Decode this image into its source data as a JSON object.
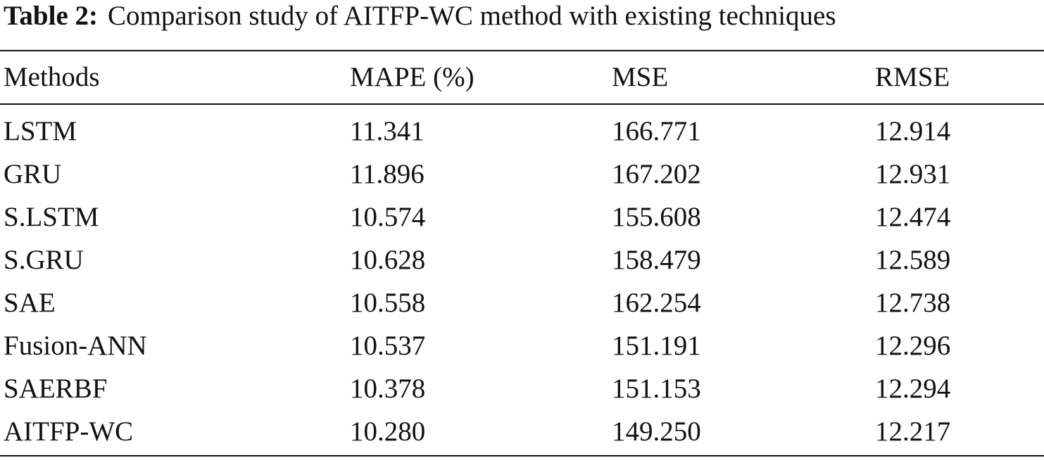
{
  "caption": {
    "label": "Table 2:",
    "text": "Comparison study of AITFP-WC method with existing techniques"
  },
  "table": {
    "header": [
      "Methods",
      "MAPE (%)",
      "MSE",
      "RMSE"
    ],
    "rows": [
      [
        "LSTM",
        "11.341",
        "166.771",
        "12.914"
      ],
      [
        "GRU",
        "11.896",
        "167.202",
        "12.931"
      ],
      [
        "S.LSTM",
        "10.574",
        "155.608",
        "12.474"
      ],
      [
        "S.GRU",
        "10.628",
        "158.479",
        "12.589"
      ],
      [
        "SAE",
        "10.558",
        "162.254",
        "12.738"
      ],
      [
        "Fusion-ANN",
        "10.537",
        "151.191",
        "12.296"
      ],
      [
        "SAERBF",
        "10.378",
        "151.153",
        "12.294"
      ],
      [
        "AITFP-WC",
        "10.280",
        "149.250",
        "12.217"
      ]
    ]
  }
}
